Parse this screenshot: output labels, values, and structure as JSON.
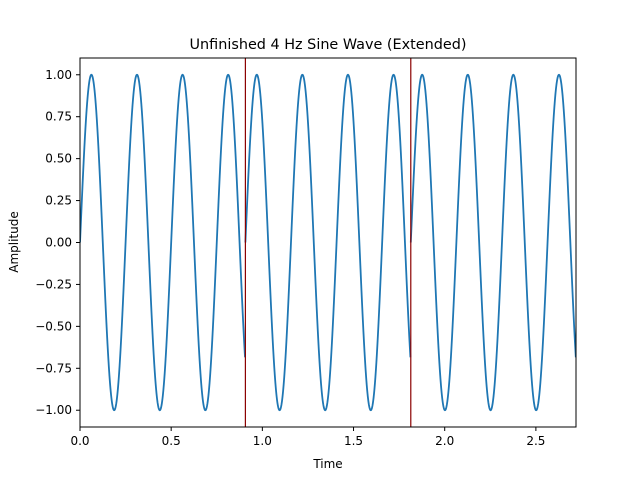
{
  "chart_data": {
    "type": "line",
    "title": "Unfinished 4 Hz Sine Wave (Extended)",
    "xlabel": "Time",
    "ylabel": "Amplitude",
    "xlim": [
      0,
      2.72
    ],
    "ylim": [
      -1.1,
      1.1
    ],
    "grid": false,
    "x_ticks": [
      0.0,
      0.5,
      1.0,
      1.5,
      2.0,
      2.5
    ],
    "x_tick_labels": [
      "0.0",
      "0.5",
      "1.0",
      "1.5",
      "2.0",
      "2.5"
    ],
    "y_ticks": [
      1.0,
      0.75,
      0.5,
      0.25,
      0.0,
      -0.25,
      -0.5,
      -0.75,
      -1.0
    ],
    "y_tick_labels": [
      "1.00",
      "0.75",
      "0.50",
      "0.25",
      "0.00",
      "−0.25",
      "−0.50",
      "−0.75",
      "−1.00"
    ],
    "series": [
      {
        "frequency_hz": 4,
        "amplitude": 1.0,
        "segment_duration": 0.905,
        "segment_starts": [
          0,
          0.907,
          1.814
        ],
        "x_end": 2.72,
        "color": "#1f77b4"
      }
    ],
    "vertical_lines": [
      {
        "x": 0.907,
        "color": "#8b0000"
      },
      {
        "x": 1.814,
        "color": "#8b0000"
      }
    ]
  }
}
